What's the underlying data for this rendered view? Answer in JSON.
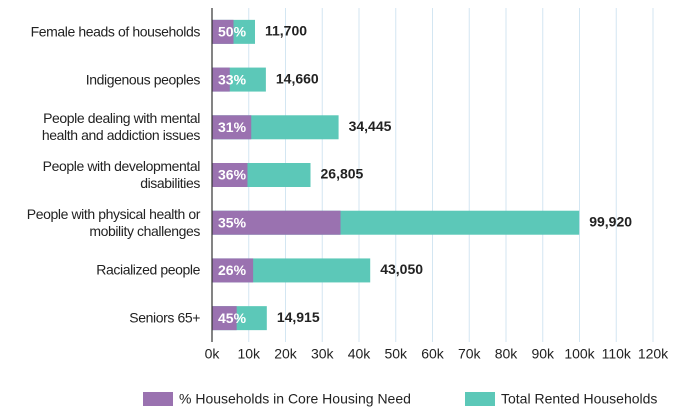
{
  "chart_data": {
    "type": "bar",
    "orientation": "horizontal",
    "categories": [
      "Female heads of households",
      "Indigenous peoples",
      "People dealing with mental health and addiction issues",
      "People with developmental disabilities",
      "People with physical health or mobility challenges",
      "Racialized people",
      "Seniors 65+"
    ],
    "series": [
      {
        "name": "% Households in Core Housing Need",
        "color": "#9a72b0",
        "values": [
          50,
          33,
          31,
          36,
          35,
          26,
          45
        ],
        "value_labels": [
          "50%",
          "33%",
          "31%",
          "36%",
          "35%",
          "26%",
          "45%"
        ]
      },
      {
        "name": "Total Rented Households",
        "color": "#5cc8b8",
        "values": [
          11700,
          14660,
          34445,
          26805,
          99920,
          43050,
          14915
        ],
        "value_labels": [
          "11,700",
          "14,660",
          "34,445",
          "26,805",
          "99,920",
          "43,050",
          "14,915"
        ]
      }
    ],
    "xlim": [
      0,
      120000
    ],
    "xticks": [
      {
        "value": 0,
        "label": "0k"
      },
      {
        "value": 10000,
        "label": "10k"
      },
      {
        "value": 20000,
        "label": "20k"
      },
      {
        "value": 30000,
        "label": "30k"
      },
      {
        "value": 40000,
        "label": "40k"
      },
      {
        "value": 50000,
        "label": "50k"
      },
      {
        "value": 60000,
        "label": "60k"
      },
      {
        "value": 70000,
        "label": "70k"
      },
      {
        "value": 80000,
        "label": "80k"
      },
      {
        "value": 90000,
        "label": "90k"
      },
      {
        "value": 100000,
        "label": "100k"
      },
      {
        "value": 110000,
        "label": "110k"
      },
      {
        "value": 120000,
        "label": "120k"
      }
    ],
    "grid": true,
    "legend": "bottom"
  }
}
